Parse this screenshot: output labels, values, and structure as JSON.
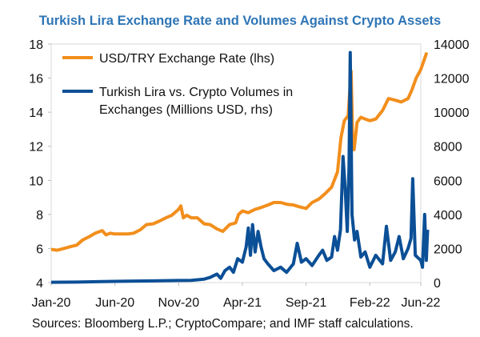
{
  "chart_data": {
    "type": "line",
    "title": "Turkish Lira Exchange Rate and Volumes Against Crypto Assets",
    "source": "Sources: Bloomberg L.P.; CryptoCompare; and IMF staff calculations.",
    "x_ticks": [
      "Jan-20",
      "Jun-20",
      "Nov-20",
      "Apr-21",
      "Sep-21",
      "Feb-22",
      "Jun-22"
    ],
    "xlim": [
      "2020-01",
      "2022-06"
    ],
    "y_left": {
      "lim": [
        4,
        18
      ],
      "ticks": [
        "4",
        "6",
        "8",
        "10",
        "12",
        "14",
        "16",
        "18"
      ]
    },
    "y_right": {
      "lim": [
        0,
        14000
      ],
      "ticks": [
        "0",
        "2000",
        "4000",
        "6000",
        "8000",
        "10000",
        "12000",
        "14000"
      ]
    },
    "grid": false,
    "legend_position": "top-left",
    "series": [
      {
        "name": "USD/TRY Exchange Rate (lhs)",
        "axis": "left",
        "color": "#f28e1c",
        "points": [
          [
            "2020-01-01",
            5.95
          ],
          [
            "2020-01-15",
            5.9
          ],
          [
            "2020-02-01",
            6.0
          ],
          [
            "2020-02-15",
            6.1
          ],
          [
            "2020-03-01",
            6.2
          ],
          [
            "2020-03-15",
            6.5
          ],
          [
            "2020-04-01",
            6.7
          ],
          [
            "2020-04-15",
            6.9
          ],
          [
            "2020-05-01",
            7.05
          ],
          [
            "2020-05-10",
            6.8
          ],
          [
            "2020-05-20",
            6.9
          ],
          [
            "2020-06-01",
            6.85
          ],
          [
            "2020-06-15",
            6.85
          ],
          [
            "2020-07-01",
            6.85
          ],
          [
            "2020-07-15",
            6.9
          ],
          [
            "2020-08-01",
            7.1
          ],
          [
            "2020-08-15",
            7.4
          ],
          [
            "2020-09-01",
            7.45
          ],
          [
            "2020-09-15",
            7.6
          ],
          [
            "2020-10-01",
            7.8
          ],
          [
            "2020-10-15",
            7.95
          ],
          [
            "2020-11-01",
            8.3
          ],
          [
            "2020-11-06",
            8.5
          ],
          [
            "2020-11-12",
            7.8
          ],
          [
            "2020-11-20",
            7.95
          ],
          [
            "2020-12-01",
            7.8
          ],
          [
            "2020-12-15",
            7.8
          ],
          [
            "2021-01-01",
            7.45
          ],
          [
            "2021-01-15",
            7.4
          ],
          [
            "2021-02-01",
            7.15
          ],
          [
            "2021-02-15",
            7.0
          ],
          [
            "2021-03-01",
            7.4
          ],
          [
            "2021-03-15",
            7.5
          ],
          [
            "2021-03-22",
            8.0
          ],
          [
            "2021-04-01",
            8.2
          ],
          [
            "2021-04-15",
            8.1
          ],
          [
            "2021-05-01",
            8.3
          ],
          [
            "2021-05-15",
            8.4
          ],
          [
            "2021-06-01",
            8.55
          ],
          [
            "2021-06-15",
            8.7
          ],
          [
            "2021-07-01",
            8.7
          ],
          [
            "2021-07-15",
            8.6
          ],
          [
            "2021-08-01",
            8.55
          ],
          [
            "2021-08-15",
            8.45
          ],
          [
            "2021-09-01",
            8.35
          ],
          [
            "2021-09-15",
            8.7
          ],
          [
            "2021-10-01",
            8.9
          ],
          [
            "2021-10-15",
            9.2
          ],
          [
            "2021-11-01",
            9.6
          ],
          [
            "2021-11-15",
            10.5
          ],
          [
            "2021-11-23",
            12.5
          ],
          [
            "2021-12-01",
            13.5
          ],
          [
            "2021-12-10",
            13.8
          ],
          [
            "2021-12-17",
            16.4
          ],
          [
            "2021-12-21",
            12.0
          ],
          [
            "2021-12-24",
            11.8
          ],
          [
            "2022-01-01",
            13.4
          ],
          [
            "2022-01-10",
            13.7
          ],
          [
            "2022-01-20",
            13.6
          ],
          [
            "2022-02-01",
            13.5
          ],
          [
            "2022-02-15",
            13.6
          ],
          [
            "2022-03-01",
            14.1
          ],
          [
            "2022-03-15",
            14.8
          ],
          [
            "2022-04-01",
            14.7
          ],
          [
            "2022-04-15",
            14.6
          ],
          [
            "2022-05-01",
            14.8
          ],
          [
            "2022-05-10",
            15.3
          ],
          [
            "2022-05-20",
            16.0
          ],
          [
            "2022-06-01",
            16.5
          ],
          [
            "2022-06-15",
            17.5
          ]
        ]
      },
      {
        "name": "Turkish Lira vs. Crypto Volumes in Exchanges (Millions USD, rhs)",
        "axis": "right",
        "color": "#0b4f96",
        "points": [
          [
            "2020-01-01",
            20
          ],
          [
            "2020-03-01",
            30
          ],
          [
            "2020-05-01",
            60
          ],
          [
            "2020-07-01",
            80
          ],
          [
            "2020-09-01",
            100
          ],
          [
            "2020-11-01",
            120
          ],
          [
            "2020-12-01",
            130
          ],
          [
            "2021-01-01",
            200
          ],
          [
            "2021-01-15",
            300
          ],
          [
            "2021-02-01",
            500
          ],
          [
            "2021-02-10",
            250
          ],
          [
            "2021-02-20",
            700
          ],
          [
            "2021-03-01",
            900
          ],
          [
            "2021-03-10",
            600
          ],
          [
            "2021-03-20",
            1400
          ],
          [
            "2021-04-01",
            1200
          ],
          [
            "2021-04-10",
            2100
          ],
          [
            "2021-04-15",
            3200
          ],
          [
            "2021-04-20",
            1600
          ],
          [
            "2021-04-25",
            3400
          ],
          [
            "2021-05-01",
            1800
          ],
          [
            "2021-05-08",
            3000
          ],
          [
            "2021-05-15",
            2100
          ],
          [
            "2021-05-22",
            1400
          ],
          [
            "2021-06-01",
            1100
          ],
          [
            "2021-06-15",
            700
          ],
          [
            "2021-07-01",
            900
          ],
          [
            "2021-07-15",
            600
          ],
          [
            "2021-08-01",
            1100
          ],
          [
            "2021-08-10",
            2300
          ],
          [
            "2021-08-20",
            1200
          ],
          [
            "2021-09-01",
            1400
          ],
          [
            "2021-09-15",
            1000
          ],
          [
            "2021-10-01",
            1600
          ],
          [
            "2021-10-10",
            1900
          ],
          [
            "2021-10-20",
            1300
          ],
          [
            "2021-11-01",
            1500
          ],
          [
            "2021-11-08",
            2700
          ],
          [
            "2021-11-15",
            1900
          ],
          [
            "2021-11-22",
            3100
          ],
          [
            "2021-11-28",
            7400
          ],
          [
            "2021-12-03",
            5500
          ],
          [
            "2021-12-08",
            3000
          ],
          [
            "2021-12-12",
            6800
          ],
          [
            "2021-12-15",
            13500
          ],
          [
            "2021-12-19",
            4000
          ],
          [
            "2021-12-25",
            2500
          ],
          [
            "2022-01-01",
            3000
          ],
          [
            "2022-01-10",
            1500
          ],
          [
            "2022-01-20",
            1800
          ],
          [
            "2022-02-01",
            900
          ],
          [
            "2022-02-15",
            1600
          ],
          [
            "2022-03-01",
            1100
          ],
          [
            "2022-03-10",
            3300
          ],
          [
            "2022-03-20",
            1300
          ],
          [
            "2022-04-01",
            1800
          ],
          [
            "2022-04-10",
            2700
          ],
          [
            "2022-04-20",
            1400
          ],
          [
            "2022-05-01",
            2000
          ],
          [
            "2022-05-08",
            2600
          ],
          [
            "2022-05-12",
            6100
          ],
          [
            "2022-05-18",
            1600
          ],
          [
            "2022-06-01",
            1300
          ],
          [
            "2022-06-05",
            900
          ],
          [
            "2022-06-10",
            4000
          ],
          [
            "2022-06-14",
            1300
          ],
          [
            "2022-06-17",
            3100
          ]
        ]
      }
    ]
  }
}
